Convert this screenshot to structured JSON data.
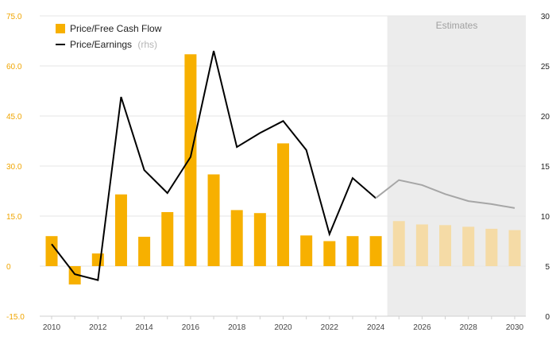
{
  "chart_data": {
    "type": "bar+line",
    "x": [
      2010,
      2011,
      2012,
      2013,
      2014,
      2015,
      2016,
      2017,
      2018,
      2019,
      2020,
      2021,
      2022,
      2023,
      2024,
      2025,
      2026,
      2027,
      2028,
      2029,
      2030
    ],
    "estimates_start": 2025,
    "estimates_label": "Estimates",
    "series": [
      {
        "name": "Price/Free Cash Flow",
        "type": "bar",
        "axis": "left",
        "values": [
          9.0,
          -5.5,
          3.8,
          21.5,
          8.8,
          16.2,
          63.5,
          27.5,
          16.8,
          15.9,
          36.8,
          9.2,
          7.5,
          9.0,
          9.0,
          13.5,
          12.5,
          12.3,
          11.8,
          11.2,
          10.8
        ]
      },
      {
        "name": "Price/Earnings",
        "name_suffix": "(rhs)",
        "type": "line",
        "axis": "right",
        "values": [
          7.2,
          4.2,
          3.6,
          21.9,
          14.6,
          12.3,
          15.9,
          26.5,
          16.9,
          18.3,
          19.5,
          16.6,
          8.2,
          13.8,
          11.8,
          13.6,
          13.1,
          12.2,
          11.5,
          11.2,
          10.8
        ]
      }
    ],
    "y_left": {
      "range": [
        -15,
        75
      ],
      "ticks": [
        "-15.0",
        "0",
        "15.0",
        "30.0",
        "45.0",
        "60.0",
        "75.0"
      ],
      "tick_values": [
        -15,
        0,
        15,
        30,
        45,
        60,
        75
      ]
    },
    "y_right": {
      "range": [
        0,
        30
      ],
      "ticks": [
        "0",
        "5",
        "10",
        "15",
        "20",
        "25",
        "30"
      ],
      "tick_values": [
        0,
        5,
        10,
        15,
        20,
        25,
        30
      ]
    },
    "x_ticks": [
      2010,
      2012,
      2014,
      2016,
      2018,
      2020,
      2022,
      2024,
      2026,
      2028,
      2030
    ],
    "colors": {
      "bar": "#f7b000",
      "bar_estimate": "#f5dba6",
      "line": "#000000",
      "line_estimate": "#a6a6a6",
      "estimate_bg": "#ececec",
      "grid": "#e6e6e6",
      "left_axis_text": "#f0a500"
    },
    "legend": {
      "position": "top-left"
    },
    "grid": true
  }
}
